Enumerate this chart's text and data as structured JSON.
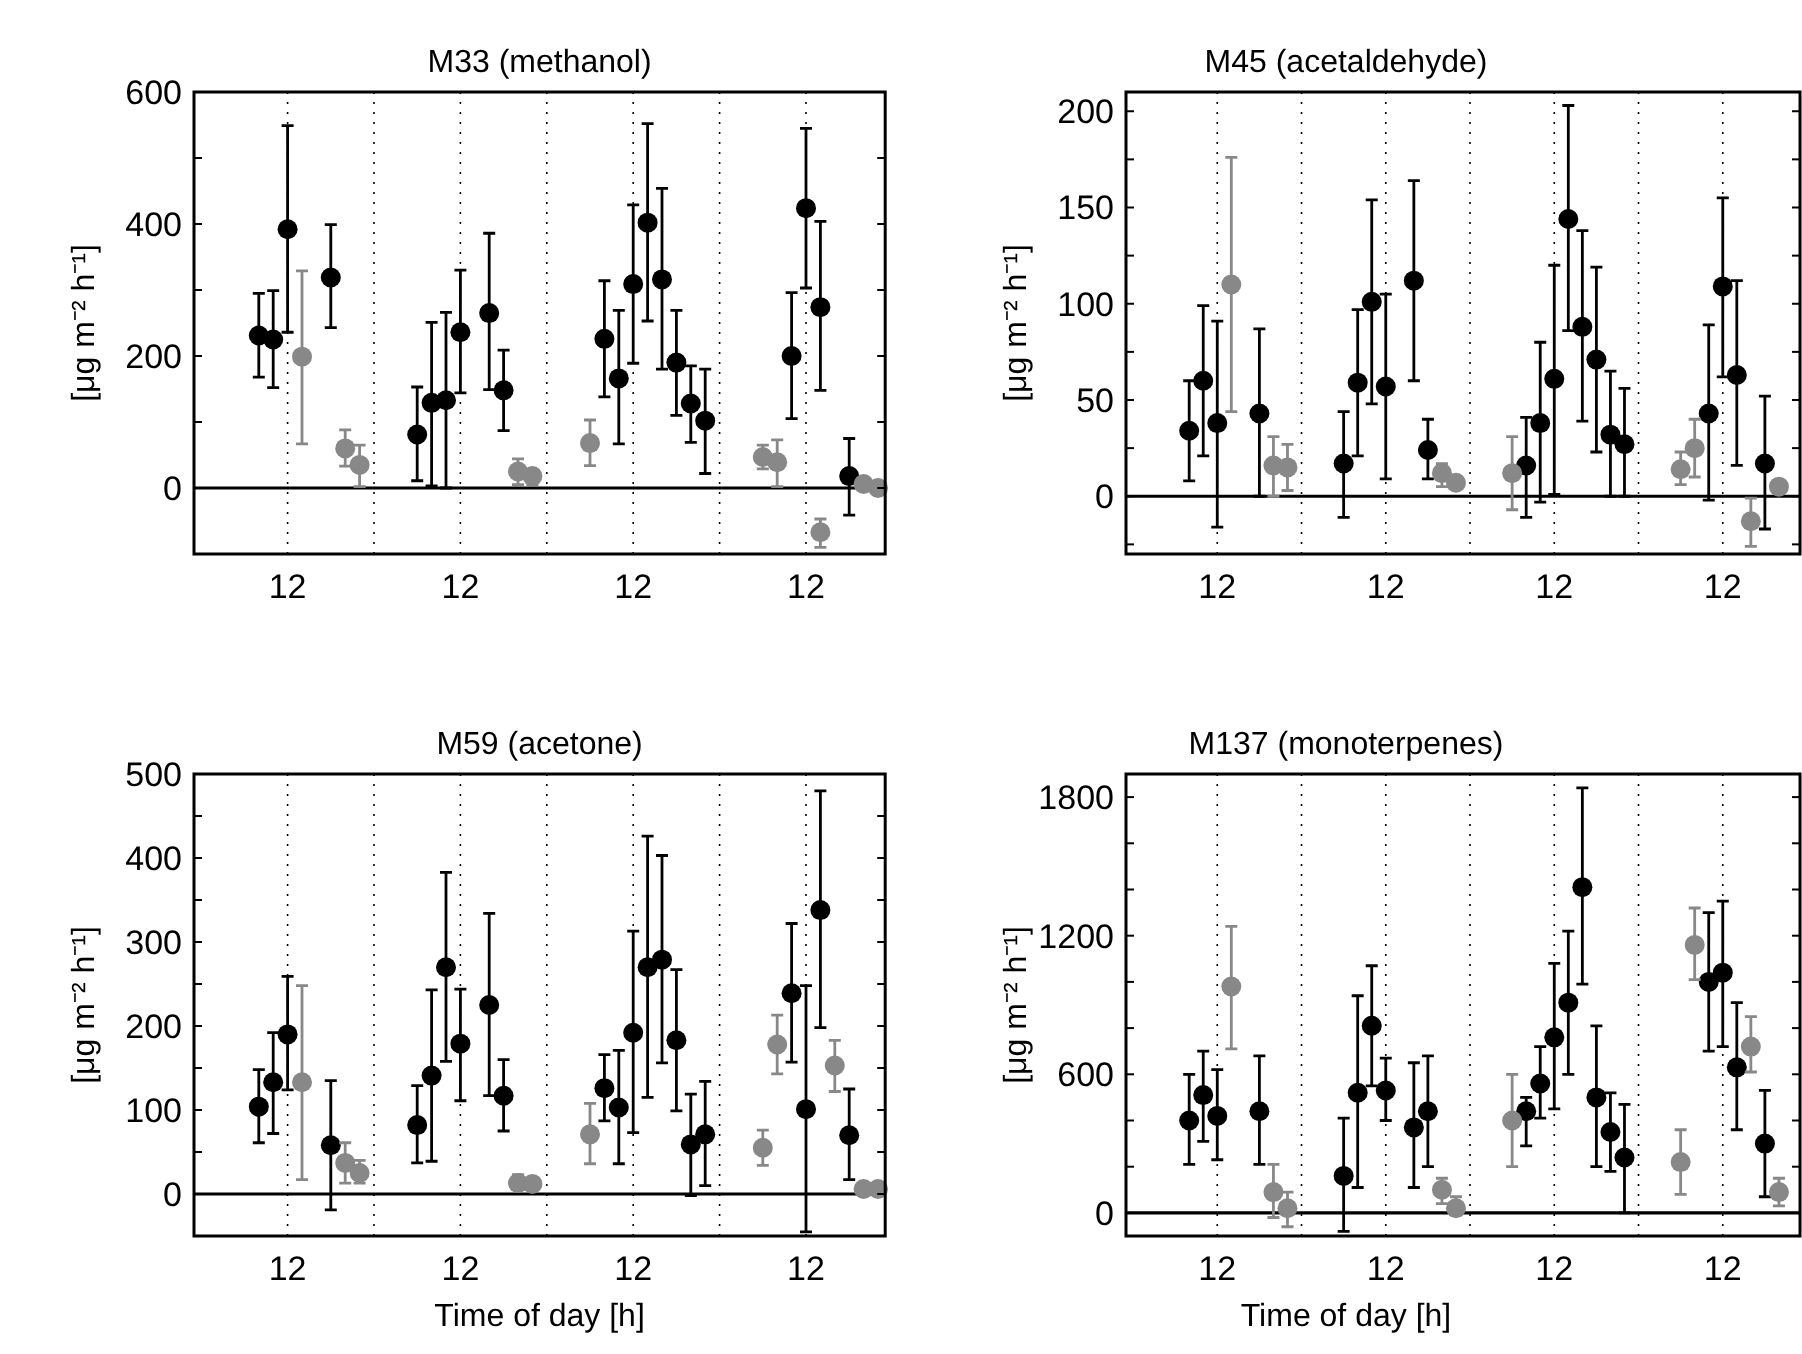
{
  "chart_data": [
    {
      "type": "scatter",
      "title": "M33 (methanol)",
      "ylabel": "[μg m⁻² h⁻¹]",
      "categories": [
        null,
        null,
        null,
        null,
        null,
        null,
        "12",
        null,
        null,
        null,
        null,
        null,
        null,
        null,
        null,
        null,
        null,
        null,
        "12",
        null,
        null,
        null,
        null,
        null,
        null,
        null,
        null,
        null,
        null,
        null,
        "12",
        null,
        null,
        null,
        null,
        null,
        null,
        null,
        null,
        null,
        null,
        null,
        "12",
        null,
        null,
        null,
        null,
        null
      ],
      "ylim": [
        -100,
        600
      ],
      "yticks": [
        0,
        {
          "value": 100,
          "label": null
        },
        200,
        {
          "value": 300,
          "label": null
        },
        400,
        {
          "value": 500,
          "label": null
        },
        600
      ],
      "grid": "x",
      "marker": "circle",
      "ref_lines": [
        {
          "axis": "y",
          "value": 0,
          "color": "#000000"
        }
      ],
      "series": [
        {
          "color": "#000000",
          "values": [
            null,
            null,
            null,
            null,
            231,
            225,
            392,
            null,
            null,
            319,
            null,
            null,
            null,
            null,
            null,
            81,
            129,
            133,
            236,
            null,
            265,
            148,
            null,
            null,
            null,
            null,
            null,
            null,
            226,
            166,
            309,
            402,
            316,
            190,
            128,
            102,
            null,
            null,
            null,
            null,
            null,
            200,
            424,
            274,
            null,
            18,
            null,
            null
          ],
          "errors": [
            null,
            null,
            null,
            null,
            [
              168,
              295
            ],
            [
              152,
              299
            ],
            [
              236,
              549
            ],
            null,
            null,
            [
              243,
              399
            ],
            null,
            null,
            null,
            null,
            null,
            [
              11,
              153
            ],
            [
              3,
              251
            ],
            [
              0,
              266
            ],
            [
              144,
              330
            ],
            null,
            [
              149,
              386
            ],
            [
              87,
              209
            ],
            null,
            null,
            null,
            null,
            null,
            null,
            [
              138,
              314
            ],
            [
              67,
              269
            ],
            [
              189,
              429
            ],
            [
              253,
              552
            ],
            [
              180,
              454
            ],
            [
              110,
              269
            ],
            [
              69,
              185
            ],
            [
              22,
              180
            ],
            null,
            null,
            null,
            null,
            null,
            [
              105,
              296
            ],
            [
              303,
              545
            ],
            [
              148,
              404
            ],
            null,
            [
              -41,
              75
            ],
            null,
            null
          ]
        },
        {
          "color": "#888888",
          "values": [
            null,
            null,
            null,
            null,
            null,
            null,
            null,
            199,
            null,
            null,
            60,
            35,
            null,
            null,
            null,
            null,
            null,
            null,
            null,
            null,
            null,
            null,
            25,
            18,
            null,
            null,
            null,
            68,
            null,
            null,
            null,
            null,
            null,
            null,
            null,
            null,
            null,
            null,
            null,
            47,
            39,
            null,
            null,
            -67,
            null,
            null,
            6,
            0
          ],
          "errors": [
            null,
            null,
            null,
            null,
            null,
            null,
            null,
            [
              67,
              329
            ],
            null,
            null,
            [
              33,
              88
            ],
            [
              2,
              65
            ],
            null,
            null,
            null,
            null,
            null,
            null,
            null,
            null,
            null,
            null,
            [
              5,
              44
            ],
            [
              5,
              28
            ],
            null,
            null,
            null,
            [
              34,
              103
            ],
            null,
            null,
            null,
            null,
            null,
            null,
            null,
            null,
            null,
            null,
            null,
            [
              29,
              65
            ],
            [
              2,
              73
            ],
            null,
            null,
            [
              -90,
              -47
            ],
            null,
            null,
            null,
            null
          ]
        }
      ]
    },
    {
      "type": "scatter",
      "title": "M45 (acetaldehyde)",
      "ylabel": "[μg m⁻² h⁻¹]",
      "categories": [
        null,
        null,
        null,
        null,
        null,
        null,
        "12",
        null,
        null,
        null,
        null,
        null,
        null,
        null,
        null,
        null,
        null,
        null,
        "12",
        null,
        null,
        null,
        null,
        null,
        null,
        null,
        null,
        null,
        null,
        null,
        "12",
        null,
        null,
        null,
        null,
        null,
        null,
        null,
        null,
        null,
        null,
        null,
        "12",
        null,
        null,
        null,
        null,
        null
      ],
      "ylim": [
        -30,
        210
      ],
      "yticks": [
        {
          "value": -25,
          "label": null
        },
        0,
        {
          "value": 25,
          "label": null
        },
        50,
        {
          "value": 75,
          "label": null
        },
        100,
        {
          "value": 125,
          "label": null
        },
        150,
        {
          "value": 175,
          "label": null
        },
        200
      ],
      "grid": "x",
      "marker": "circle",
      "ref_lines": [
        {
          "axis": "y",
          "value": 0,
          "color": "#000000"
        }
      ],
      "series": [
        {
          "color": "#000000",
          "values": [
            null,
            null,
            null,
            null,
            34,
            60,
            38,
            null,
            null,
            43,
            null,
            null,
            null,
            null,
            null,
            17,
            59,
            101,
            57,
            null,
            112,
            24,
            null,
            null,
            null,
            null,
            null,
            null,
            16,
            38,
            61,
            144,
            88,
            71,
            32,
            27,
            null,
            null,
            null,
            null,
            null,
            43,
            109,
            63,
            null,
            17,
            null,
            null
          ],
          "errors": [
            null,
            null,
            null,
            null,
            [
              8,
              60
            ],
            [
              21,
              99
            ],
            [
              -16,
              91
            ],
            null,
            null,
            [
              0,
              87
            ],
            null,
            null,
            null,
            null,
            null,
            [
              -11,
              44
            ],
            [
              21,
              97
            ],
            [
              48,
              154
            ],
            [
              9,
              105
            ],
            null,
            [
              60,
              164
            ],
            [
              9,
              40
            ],
            null,
            null,
            null,
            null,
            null,
            null,
            [
              -11,
              41
            ],
            [
              -3,
              80
            ],
            [
              1,
              120
            ],
            [
              86,
              203
            ],
            [
              39,
              138
            ],
            [
              23,
              119
            ],
            [
              0,
              65
            ],
            [
              0,
              56
            ],
            null,
            null,
            null,
            null,
            null,
            [
              -2,
              89
            ],
            [
              62,
              155
            ],
            [
              16,
              112
            ],
            null,
            [
              -17,
              52
            ],
            null,
            null
          ]
        },
        {
          "color": "#888888",
          "values": [
            null,
            null,
            null,
            null,
            null,
            null,
            null,
            110,
            null,
            null,
            16,
            15,
            null,
            null,
            null,
            null,
            null,
            null,
            null,
            null,
            null,
            null,
            12,
            7,
            null,
            null,
            null,
            12,
            null,
            null,
            null,
            null,
            null,
            null,
            null,
            null,
            null,
            null,
            null,
            14,
            25,
            null,
            null,
            null,
            -13,
            null,
            5,
            null
          ],
          "errors": [
            null,
            null,
            null,
            null,
            null,
            null,
            null,
            [
              44,
              176
            ],
            null,
            null,
            [
              0,
              31
            ],
            [
              3,
              27
            ],
            null,
            null,
            null,
            null,
            null,
            null,
            null,
            null,
            null,
            null,
            [
              5,
              17
            ],
            null,
            null,
            null,
            null,
            [
              -7,
              31
            ],
            null,
            null,
            null,
            null,
            null,
            null,
            null,
            null,
            null,
            null,
            null,
            [
              6,
              23
            ],
            [
              10,
              40
            ],
            null,
            null,
            null,
            [
              -26,
              -1
            ],
            null,
            null,
            null
          ]
        }
      ]
    },
    {
      "type": "scatter",
      "title": "M59 (acetone)",
      "ylabel": "[μg m⁻² h⁻¹]",
      "xlabel": "Time of day [h]",
      "categories": [
        null,
        null,
        null,
        null,
        null,
        null,
        "12",
        null,
        null,
        null,
        null,
        null,
        null,
        null,
        null,
        null,
        null,
        null,
        "12",
        null,
        null,
        null,
        null,
        null,
        null,
        null,
        null,
        null,
        null,
        null,
        "12",
        null,
        null,
        null,
        null,
        null,
        null,
        null,
        null,
        null,
        null,
        null,
        "12",
        null,
        null,
        null,
        null,
        null
      ],
      "ylim": [
        -50,
        500
      ],
      "yticks": [
        0,
        {
          "value": 50,
          "label": null
        },
        100,
        {
          "value": 150,
          "label": null
        },
        200,
        {
          "value": 250,
          "label": null
        },
        300,
        {
          "value": 350,
          "label": null
        },
        400,
        {
          "value": 450,
          "label": null
        },
        500
      ],
      "grid": "x",
      "marker": "circle",
      "ref_lines": [
        {
          "axis": "y",
          "value": 0,
          "color": "#000000"
        }
      ],
      "series": [
        {
          "color": "#000000",
          "values": [
            null,
            null,
            null,
            null,
            104,
            133,
            190,
            null,
            null,
            58,
            null,
            null,
            null,
            null,
            null,
            82,
            141,
            270,
            179,
            null,
            225,
            117,
            null,
            null,
            null,
            null,
            null,
            null,
            126,
            103,
            192,
            270,
            279,
            183,
            59,
            71,
            null,
            null,
            null,
            null,
            null,
            239,
            101,
            338,
            null,
            70,
            null,
            null
          ],
          "errors": [
            null,
            null,
            null,
            null,
            [
              61,
              148
            ],
            [
              72,
              192
            ],
            [
              124,
              259
            ],
            null,
            null,
            [
              -19,
              135
            ],
            null,
            null,
            null,
            null,
            null,
            [
              37,
              129
            ],
            [
              39,
              243
            ],
            [
              158,
              383
            ],
            [
              111,
              244
            ],
            null,
            [
              117,
              334
            ],
            [
              75,
              160
            ],
            null,
            null,
            null,
            null,
            null,
            null,
            [
              87,
              166
            ],
            [
              36,
              171
            ],
            [
              73,
              313
            ],
            [
              115,
              426
            ],
            [
              156,
              403
            ],
            [
              99,
              267
            ],
            [
              -2,
              119
            ],
            [
              10,
              134
            ],
            null,
            null,
            null,
            null,
            null,
            [
              157,
              322
            ],
            [
              -45,
              248
            ],
            [
              198,
              480
            ],
            null,
            [
              17,
              125
            ],
            null,
            null
          ]
        },
        {
          "color": "#888888",
          "values": [
            null,
            null,
            null,
            null,
            null,
            null,
            null,
            133,
            null,
            null,
            37,
            25,
            null,
            null,
            null,
            null,
            null,
            null,
            null,
            null,
            null,
            null,
            13,
            12,
            null,
            null,
            null,
            71,
            null,
            null,
            null,
            null,
            null,
            null,
            null,
            null,
            null,
            null,
            null,
            55,
            178,
            null,
            null,
            null,
            153,
            null,
            6,
            6
          ],
          "errors": [
            null,
            null,
            null,
            null,
            null,
            null,
            null,
            [
              17,
              248
            ],
            null,
            null,
            [
              13,
              61
            ],
            [
              13,
              40
            ],
            null,
            null,
            null,
            null,
            null,
            null,
            null,
            null,
            null,
            null,
            [
              6,
              23
            ],
            null,
            null,
            null,
            null,
            [
              36,
              108
            ],
            null,
            null,
            null,
            null,
            null,
            null,
            null,
            null,
            null,
            null,
            null,
            [
              34,
              76
            ],
            [
              143,
              213
            ],
            null,
            null,
            null,
            [
              122,
              183
            ],
            null,
            null,
            null
          ]
        }
      ]
    },
    {
      "type": "scatter",
      "title": "M137 (monoterpenes)",
      "ylabel": "[μg m⁻² h⁻¹]",
      "xlabel": "Time of day [h]",
      "categories": [
        null,
        null,
        null,
        null,
        null,
        null,
        "12",
        null,
        null,
        null,
        null,
        null,
        null,
        null,
        null,
        null,
        null,
        null,
        "12",
        null,
        null,
        null,
        null,
        null,
        null,
        null,
        null,
        null,
        null,
        null,
        "12",
        null,
        null,
        null,
        null,
        null,
        null,
        null,
        null,
        null,
        null,
        null,
        "12",
        null,
        null,
        null,
        null,
        null
      ],
      "ylim": [
        -100,
        1900
      ],
      "yticks": [
        0,
        {
          "value": 200,
          "label": null
        },
        {
          "value": 400,
          "label": null
        },
        600,
        {
          "value": 800,
          "label": null
        },
        {
          "value": 1000,
          "label": null
        },
        1200,
        {
          "value": 1400,
          "label": null
        },
        {
          "value": 1600,
          "label": null
        },
        1800
      ],
      "grid": "x",
      "marker": "circle",
      "ref_lines": [
        {
          "axis": "y",
          "value": 0,
          "color": "#000000"
        }
      ],
      "series": [
        {
          "color": "#000000",
          "values": [
            null,
            null,
            null,
            null,
            400,
            510,
            420,
            null,
            null,
            440,
            null,
            null,
            null,
            null,
            null,
            160,
            520,
            810,
            530,
            null,
            370,
            440,
            null,
            null,
            null,
            null,
            null,
            null,
            440,
            560,
            760,
            910,
            1410,
            500,
            350,
            240,
            null,
            null,
            null,
            null,
            null,
            1000,
            1040,
            630,
            null,
            300,
            null,
            null
          ],
          "errors": [
            null,
            null,
            null,
            null,
            [
              210,
              600
            ],
            [
              310,
              700
            ],
            [
              230,
              620
            ],
            null,
            null,
            [
              210,
              680
            ],
            null,
            null,
            null,
            null,
            null,
            [
              -80,
              410
            ],
            [
              110,
              940
            ],
            [
              550,
              1070
            ],
            [
              400,
              670
            ],
            null,
            [
              110,
              650
            ],
            [
              200,
              680
            ],
            null,
            null,
            null,
            null,
            null,
            null,
            [
              290,
              500
            ],
            [
              410,
              720
            ],
            [
              450,
              1080
            ],
            [
              600,
              1220
            ],
            [
              990,
              1840
            ],
            [
              200,
              810
            ],
            [
              180,
              520
            ],
            [
              0,
              470
            ],
            null,
            null,
            null,
            null,
            null,
            [
              700,
              1300
            ],
            [
              720,
              1350
            ],
            [
              360,
              910
            ],
            null,
            [
              70,
              530
            ],
            null,
            null
          ]
        },
        {
          "color": "#888888",
          "values": [
            null,
            null,
            null,
            null,
            null,
            null,
            null,
            980,
            null,
            null,
            90,
            20,
            null,
            null,
            null,
            null,
            null,
            null,
            null,
            null,
            null,
            null,
            100,
            20,
            null,
            null,
            null,
            400,
            null,
            null,
            null,
            null,
            null,
            null,
            null,
            null,
            null,
            null,
            null,
            220,
            1160,
            null,
            null,
            null,
            720,
            null,
            90,
            null
          ],
          "errors": [
            null,
            null,
            null,
            null,
            null,
            null,
            null,
            [
              710,
              1240
            ],
            null,
            null,
            [
              -20,
              210
            ],
            [
              -60,
              90
            ],
            null,
            null,
            null,
            null,
            null,
            null,
            null,
            null,
            null,
            null,
            [
              40,
              150
            ],
            [
              -10,
              70
            ],
            null,
            null,
            null,
            [
              200,
              600
            ],
            null,
            null,
            null,
            null,
            null,
            null,
            null,
            null,
            null,
            null,
            null,
            [
              80,
              360
            ],
            [
              1010,
              1320
            ],
            null,
            null,
            null,
            [
              610,
              850
            ],
            null,
            [
              30,
              150
            ],
            null
          ]
        }
      ]
    }
  ]
}
